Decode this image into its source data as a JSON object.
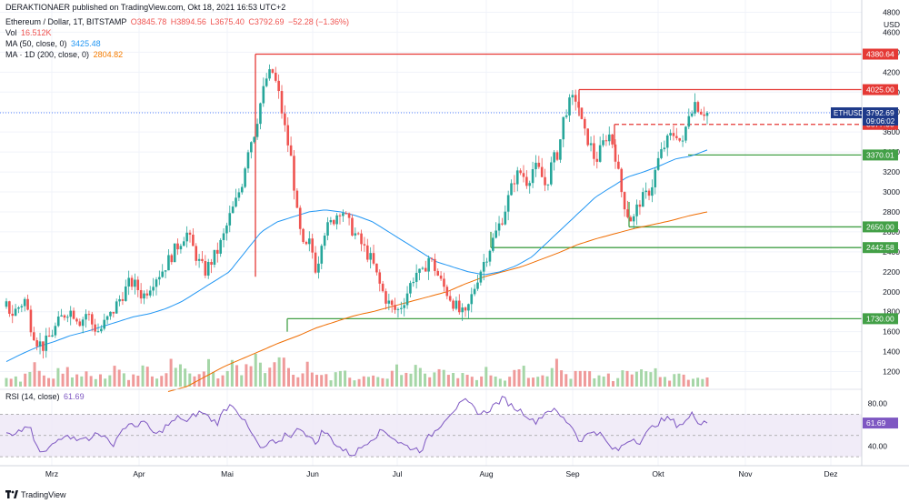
{
  "header": {
    "published": "DERAKTIONAER published on TradingView.com, Okt 18, 2021 16:53 UTC+2",
    "symbol_line": "Ethereum / Dollar, 1T, BITSTAMP",
    "ohlc": {
      "o": "O3845.78",
      "h": "H3894.56",
      "l": "L3675.40",
      "c": "C3792.69",
      "chg": "−52.28 (−1.36%)"
    },
    "vol_label": "Vol",
    "vol_value": "16.512K",
    "ma50_label": "MA (50, close, 0)",
    "ma50_value": "3425.48",
    "ma200_label": "MA · 1D (200, close, 0)",
    "ma200_value": "2804.82"
  },
  "footer": {
    "brand": "TradingView"
  },
  "colors": {
    "up": "#26a69a",
    "down": "#ef5350",
    "ma50": "#2196f3",
    "ma200": "#ef6c00",
    "rsi": "#7e57c2",
    "support": "#43a047",
    "resistance": "#e53935",
    "label_blue": "#1e3a8a"
  },
  "chart_data": {
    "type": "candlestick",
    "price_axis": {
      "unit": "USD",
      "ticks": [
        1200,
        1400,
        1600,
        1800,
        2000,
        2200,
        2400,
        2600,
        2800,
        3000,
        3200,
        3400,
        3600,
        3800,
        4000,
        4200,
        4400,
        4600,
        4800
      ],
      "range": [
        1050,
        4850
      ]
    },
    "time_axis": {
      "labels": [
        "Mrz",
        "Apr",
        "Mai",
        "Jun",
        "Jul",
        "Aug",
        "Sep",
        "Okt",
        "Nov",
        "Dez"
      ]
    },
    "current": {
      "symbol": "ETHUSD",
      "price": "3792.69",
      "countdown": "09:06:02"
    },
    "horizontal_levels": [
      {
        "value": 4380.64,
        "label": "4380.64",
        "color": "resistance",
        "style": "solid"
      },
      {
        "value": 4025.0,
        "label": "4025.00",
        "color": "resistance",
        "style": "solid"
      },
      {
        "value": 3677.0,
        "label": "3677.00",
        "color": "resistance",
        "style": "dashed"
      },
      {
        "value": 3370.01,
        "label": "3370.01",
        "color": "support",
        "style": "solid"
      },
      {
        "value": 2650.0,
        "label": "2650.00",
        "color": "support",
        "style": "solid"
      },
      {
        "value": 2442.58,
        "label": "2442.58",
        "color": "support",
        "style": "solid"
      },
      {
        "value": 1730.0,
        "label": "1730.00",
        "color": "support",
        "style": "solid"
      }
    ],
    "price_path": [
      1850,
      1780,
      1850,
      1920,
      1650,
      1500,
      1450,
      1550,
      1650,
      1750,
      1820,
      1780,
      1700,
      1800,
      1650,
      1600,
      1700,
      1780,
      1900,
      2000,
      2100,
      2050,
      1950,
      2050,
      2150,
      2200,
      2300,
      2400,
      2500,
      2600,
      2450,
      2300,
      2200,
      2300,
      2400,
      2550,
      2750,
      2900,
      3100,
      3450,
      3600,
      3900,
      4150,
      4200,
      3950,
      3600,
      3300,
      2700,
      2400,
      2500,
      2200,
      2600,
      2650,
      2750,
      2850,
      2700,
      2600,
      2500,
      2400,
      2300,
      2100,
      1950,
      1850,
      1800,
      1900,
      2050,
      2200,
      2150,
      2350,
      2250,
      2100,
      2000,
      1900,
      1800,
      1750,
      1950,
      2150,
      2300,
      2450,
      2600,
      2750,
      2950,
      3150,
      3200,
      3100,
      3250,
      3200,
      3050,
      3300,
      3400,
      3800,
      3900,
      3950,
      3600,
      3500,
      3300,
      3450,
      3600,
      3450,
      3050,
      2800,
      2700,
      2900,
      2950,
      3050,
      3300,
      3450,
      3550,
      3600,
      3450,
      3800,
      3900,
      3820,
      3793
    ],
    "ma50_path": [
      1300,
      1380,
      1450,
      1500,
      1560,
      1600,
      1650,
      1700,
      1750,
      1780,
      1830,
      1900,
      2000,
      2100,
      2200,
      2400,
      2600,
      2700,
      2750,
      2800,
      2820,
      2800,
      2760,
      2700,
      2600,
      2500,
      2400,
      2300,
      2250,
      2200,
      2170,
      2200,
      2260,
      2350,
      2500,
      2650,
      2800,
      2950,
      3050,
      3150,
      3200,
      3260,
      3330,
      3360,
      3420
    ],
    "ma200_path": [
      1000,
      1050,
      1150,
      1250,
      1330,
      1410,
      1490,
      1560,
      1640,
      1700,
      1760,
      1800,
      1850,
      1900,
      1950,
      2000,
      2080,
      2150,
      2200,
      2250,
      2320,
      2390,
      2470,
      2530,
      2580,
      2630,
      2670,
      2710,
      2760,
      2800
    ],
    "rsi": {
      "label": "RSI (14, close)",
      "value": "61.69",
      "ticks": [
        40,
        60,
        80
      ],
      "band": [
        30,
        70
      ],
      "range": [
        25,
        90
      ],
      "path": [
        52,
        48,
        55,
        60,
        38,
        33,
        40,
        47,
        53,
        46,
        50,
        44,
        55,
        48,
        40,
        52,
        60,
        58,
        64,
        56,
        50,
        58,
        62,
        68,
        62,
        70,
        72,
        66,
        62,
        75,
        80,
        70,
        58,
        46,
        35,
        45,
        40,
        52,
        50,
        58,
        50,
        42,
        55,
        48,
        40,
        35,
        32,
        38,
        45,
        50,
        55,
        50,
        44,
        40,
        38,
        36,
        48,
        55,
        64,
        72,
        78,
        82,
        76,
        70,
        74,
        80,
        85,
        78,
        74,
        70,
        62,
        68,
        75,
        72,
        65,
        60,
        45,
        50,
        55,
        50,
        40,
        35,
        42,
        48,
        44,
        52,
        60,
        64,
        66,
        60,
        62,
        70,
        62,
        66
      ]
    },
    "volume_path": [
      10,
      14,
      8,
      18,
      26,
      12,
      9,
      15,
      22,
      11,
      13,
      19,
      9,
      16,
      12,
      25,
      14,
      10,
      18,
      22,
      13,
      9,
      17,
      30,
      21,
      14,
      11,
      19,
      28,
      16,
      12,
      35,
      22,
      15,
      40,
      26,
      18,
      42,
      30,
      22,
      14,
      19,
      26,
      12,
      16,
      11,
      22,
      15,
      10,
      13,
      18,
      12,
      9,
      14,
      20,
      11,
      15,
      24,
      13,
      10,
      19,
      14,
      12,
      17,
      11,
      9,
      15,
      20,
      13,
      8,
      12,
      23,
      16,
      10,
      14,
      18,
      26,
      19,
      12,
      15,
      21,
      13,
      10,
      14,
      9,
      16,
      22,
      12,
      17,
      25,
      14,
      11,
      9,
      15,
      12,
      10,
      8,
      11
    ]
  }
}
